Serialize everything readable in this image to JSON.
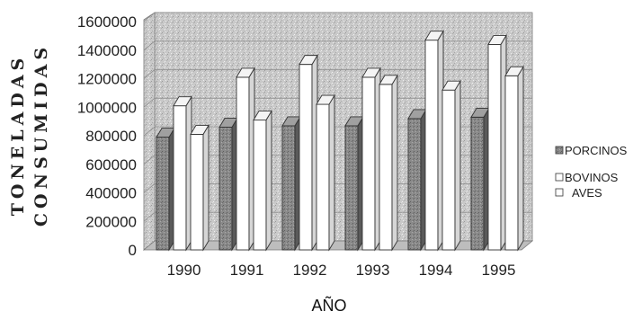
{
  "chart_data": {
    "type": "bar",
    "categories": [
      "1990",
      "1991",
      "1992",
      "1993",
      "1994",
      "1995"
    ],
    "series": [
      {
        "name": "PORCINOS",
        "values": [
          790000,
          860000,
          870000,
          870000,
          920000,
          930000
        ],
        "color": "#8c8c8c"
      },
      {
        "name": "BOVINOS",
        "values": [
          1010000,
          1210000,
          1300000,
          1210000,
          1470000,
          1440000
        ],
        "color": "#ffffff"
      },
      {
        "name": "AVES",
        "values": [
          810000,
          910000,
          1020000,
          1160000,
          1120000,
          1220000
        ],
        "color": "#ffffff"
      }
    ],
    "yticks": [
      "0",
      "200000",
      "400000",
      "600000",
      "800000",
      "1000000",
      "1200000",
      "1400000",
      "1600000"
    ],
    "ylim": [
      0,
      1600000
    ],
    "ylabel_lines": [
      "TONELADAS",
      "CONSUMIDAS"
    ],
    "xlabel": "AÑO",
    "legend_position": "right",
    "grid": true,
    "style": "3d-column"
  }
}
